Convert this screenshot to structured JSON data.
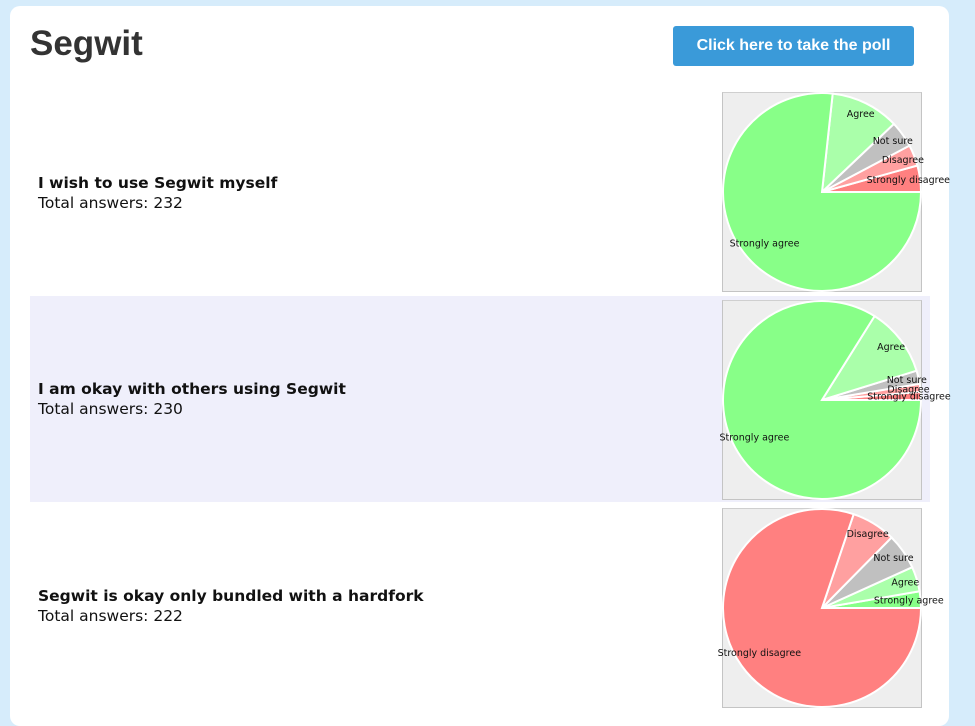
{
  "page": {
    "title": "Segwit",
    "poll_button": "Click here to take the poll",
    "total_prefix": "Total answers: "
  },
  "questions": [
    {
      "label": "I wish to use Segwit myself",
      "total": "232",
      "total_text": "Total answers: 232"
    },
    {
      "label": "I am okay with others using Segwit",
      "total": "230",
      "total_text": "Total answers: 230"
    },
    {
      "label": "Segwit is okay only bundled with a hardfork",
      "total": "222",
      "total_text": "Total answers: 222"
    }
  ],
  "colors": {
    "Strongly agree": "#88ff88",
    "Agree": "#aaffaa",
    "Not sure": "#c0c0c0",
    "Disagree": "#ffa0a0",
    "Strongly disagree": "#ff8080",
    "button": "#3a9ad9",
    "background": "#d6ecfb",
    "alt_row": "#efeffb"
  },
  "chart_data": [
    {
      "type": "pie",
      "title": "I wish to use Segwit myself",
      "categories": [
        "Strongly disagree",
        "Disagree",
        "Not sure",
        "Agree",
        "Strongly agree"
      ],
      "values": [
        10,
        8,
        10,
        26,
        178
      ]
    },
    {
      "type": "pie",
      "title": "I am okay with others using Segwit",
      "categories": [
        "Strongly disagree",
        "Disagree",
        "Not sure",
        "Agree",
        "Strongly agree"
      ],
      "values": [
        3,
        3,
        5,
        26,
        193
      ]
    },
    {
      "type": "pie",
      "title": "Segwit is okay only bundled with a hardfork",
      "categories": [
        "Strongly agree",
        "Agree",
        "Not sure",
        "Disagree",
        "Strongly disagree"
      ],
      "values": [
        6,
        9,
        13,
        16,
        178
      ]
    }
  ]
}
